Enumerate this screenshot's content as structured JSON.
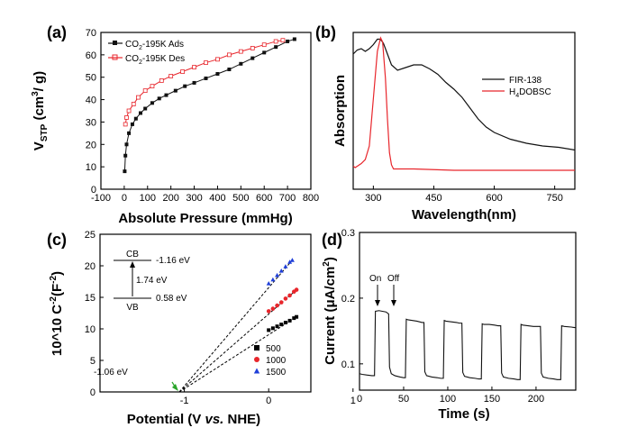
{
  "panels": {
    "a": {
      "label": "(a)"
    },
    "b": {
      "label": "(b)"
    },
    "c": {
      "label": "(c)"
    },
    "d": {
      "label": "(d)"
    }
  },
  "chart_data": [
    {
      "id": "a",
      "type": "line",
      "xlabel": "Absolute Pressure (mmHg)",
      "ylabel_main": "V",
      "ylabel_sub": "STP",
      "ylabel_rest": " (cm",
      "ylabel_sup": "3",
      "ylabel_end": "/ g)",
      "xlim": [
        -100,
        800
      ],
      "ylim": [
        0,
        70
      ],
      "xticks": [
        "-100",
        "0",
        "100",
        "200",
        "300",
        "400",
        "500",
        "600",
        "700",
        "800"
      ],
      "yticks": [
        "0",
        "10",
        "20",
        "30",
        "40",
        "50",
        "60",
        "70"
      ],
      "legend_position": "top-left",
      "colors": {
        "ads": "#111111",
        "des": "#e8262c"
      },
      "series": [
        {
          "name": "CO2-195K Ads",
          "legend": [
            "CO",
            "2",
            "-195K Ads"
          ],
          "marker": "square-filled",
          "x": [
            2,
            5,
            10,
            20,
            35,
            50,
            70,
            90,
            120,
            150,
            180,
            220,
            260,
            300,
            350,
            400,
            450,
            500,
            550,
            600,
            650,
            700,
            730
          ],
          "y": [
            8,
            15,
            20,
            25,
            29,
            31.5,
            34,
            36,
            38.5,
            40.5,
            42,
            44,
            46,
            47.5,
            49.5,
            51.5,
            53.5,
            56,
            58.5,
            61,
            63.5,
            66,
            67
          ]
        },
        {
          "name": "CO2-195K Des",
          "legend": [
            "CO",
            "2",
            "-195K Des"
          ],
          "marker": "square-open",
          "x": [
            5,
            10,
            20,
            40,
            60,
            90,
            120,
            160,
            200,
            250,
            300,
            350,
            400,
            450,
            500,
            550,
            600,
            650,
            680
          ],
          "y": [
            29,
            32,
            35,
            38,
            41,
            44,
            46,
            48.5,
            50.5,
            52.5,
            54.5,
            56.5,
            58,
            60,
            61.5,
            63,
            64.5,
            66,
            66.5
          ]
        }
      ]
    },
    {
      "id": "b",
      "type": "line",
      "xlabel": "Wavelength(nm)",
      "ylabel": "Absorption",
      "xlim": [
        250,
        800
      ],
      "xticks": [
        "300",
        "450",
        "600",
        "750"
      ],
      "legend_position": "top-right",
      "colors": {
        "fir": "#111111",
        "ligand": "#e8262c"
      },
      "series": [
        {
          "name": "FIR-138",
          "legend": [
            "FIR-138"
          ],
          "x": [
            250,
            260,
            270,
            280,
            290,
            300,
            310,
            315,
            320,
            325,
            335,
            345,
            360,
            380,
            400,
            420,
            440,
            460,
            480,
            500,
            520,
            540,
            560,
            580,
            600,
            640,
            680,
            720,
            760,
            800
          ],
          "y": [
            0.88,
            0.91,
            0.92,
            0.9,
            0.92,
            0.95,
            0.99,
            0.99,
            0.98,
            0.96,
            0.88,
            0.8,
            0.76,
            0.78,
            0.8,
            0.8,
            0.77,
            0.73,
            0.67,
            0.62,
            0.56,
            0.48,
            0.4,
            0.34,
            0.3,
            0.25,
            0.22,
            0.2,
            0.19,
            0.17
          ]
        },
        {
          "name": "H4DOBSC",
          "legend": [
            "H",
            "4",
            "DOBSC"
          ],
          "x": [
            250,
            255,
            260,
            270,
            280,
            290,
            300,
            310,
            318,
            323,
            330,
            335,
            340,
            345,
            350,
            360,
            400,
            500,
            600,
            700,
            800
          ],
          "y": [
            0.05,
            0.04,
            0.05,
            0.07,
            0.1,
            0.2,
            0.55,
            0.9,
            1.0,
            0.97,
            0.7,
            0.4,
            0.15,
            0.06,
            0.03,
            0.03,
            0.03,
            0.02,
            0.02,
            0.02,
            0.02
          ]
        }
      ]
    },
    {
      "id": "c",
      "type": "scatter",
      "xlabel_parts": [
        "Potential (V ",
        "vs.",
        " NHE)"
      ],
      "ylabel": "10^10 C",
      "ylabel_sup": "-2",
      "ylabel_end": "(F",
      "ylabel_sup2": "-2",
      "ylabel_close": ")",
      "xlim": [
        -2.0,
        0.5
      ],
      "ylim": [
        0,
        25
      ],
      "xticks": [
        "-1",
        "0",
        "1"
      ],
      "yticks": [
        "0",
        "5",
        "10",
        "15",
        "20",
        "25"
      ],
      "legend_position": "bottom-right",
      "intercept": {
        "x": -1.06,
        "label": "-1.06 eV"
      },
      "band_diagram": {
        "cb": "CB",
        "vb": "VB",
        "cb_value": "-1.16 eV",
        "vb_value": "0.58 eV",
        "gap": "1.74 eV"
      },
      "series": [
        {
          "name": "500",
          "color": "#000000",
          "marker": "square",
          "x": [
            0.0,
            0.05,
            0.1,
            0.15,
            0.2,
            0.25,
            0.3,
            0.33
          ],
          "y": [
            9.8,
            10.1,
            10.4,
            10.7,
            11.0,
            11.3,
            11.7,
            11.9
          ]
        },
        {
          "name": "1000",
          "color": "#e8262c",
          "marker": "circle",
          "x": [
            0.0,
            0.05,
            0.1,
            0.15,
            0.2,
            0.25,
            0.3,
            0.33
          ],
          "y": [
            12.8,
            13.2,
            13.7,
            14.2,
            14.8,
            15.3,
            15.9,
            16.2
          ]
        },
        {
          "name": "1500",
          "color": "#1f3fd9",
          "marker": "triangle",
          "x": [
            0.0,
            0.05,
            0.1,
            0.15,
            0.2,
            0.25,
            0.28
          ],
          "y": [
            17.2,
            17.8,
            18.5,
            19.2,
            19.9,
            20.6,
            20.9
          ]
        }
      ]
    },
    {
      "id": "d",
      "type": "line",
      "xlabel": "Time (s)",
      "ylabel": "Current (μA/cm",
      "ylabel_sup": "2",
      "ylabel_end": ")",
      "xlim": [
        0,
        245
      ],
      "ylim": [
        0.06,
        0.3
      ],
      "xticks": [
        "0",
        "50",
        "100",
        "150",
        "200"
      ],
      "yticks": [
        "0.1",
        "0.2",
        "0.3"
      ],
      "annotations": {
        "on": "On",
        "off": "Off"
      },
      "series": [
        {
          "name": "photocurrent",
          "x": [
            0,
            3,
            8,
            14,
            17,
            18,
            22,
            26,
            30,
            33,
            34,
            36,
            40,
            46,
            50,
            52,
            53,
            55,
            60,
            65,
            71,
            73,
            74,
            76,
            82,
            88,
            92,
            95,
            96,
            98,
            104,
            110,
            113,
            116,
            117,
            119,
            125,
            131,
            135,
            138,
            139,
            141,
            147,
            153,
            157,
            160,
            161,
            163,
            169,
            175,
            179,
            182,
            183,
            185,
            191,
            197,
            201,
            205,
            206,
            208,
            214,
            220,
            224,
            228,
            229,
            232,
            240,
            245
          ],
          "y": [
            0.085,
            0.084,
            0.083,
            0.082,
            0.082,
            0.18,
            0.181,
            0.18,
            0.179,
            0.176,
            0.095,
            0.085,
            0.082,
            0.08,
            0.079,
            0.079,
            0.168,
            0.167,
            0.166,
            0.165,
            0.163,
            0.163,
            0.088,
            0.082,
            0.08,
            0.079,
            0.078,
            0.078,
            0.166,
            0.165,
            0.164,
            0.163,
            0.162,
            0.162,
            0.087,
            0.081,
            0.079,
            0.078,
            0.077,
            0.077,
            0.161,
            0.16,
            0.16,
            0.159,
            0.158,
            0.158,
            0.086,
            0.08,
            0.078,
            0.077,
            0.076,
            0.076,
            0.16,
            0.159,
            0.158,
            0.157,
            0.157,
            0.157,
            0.086,
            0.08,
            0.078,
            0.077,
            0.076,
            0.076,
            0.158,
            0.157,
            0.156,
            0.155
          ]
        }
      ]
    }
  ]
}
